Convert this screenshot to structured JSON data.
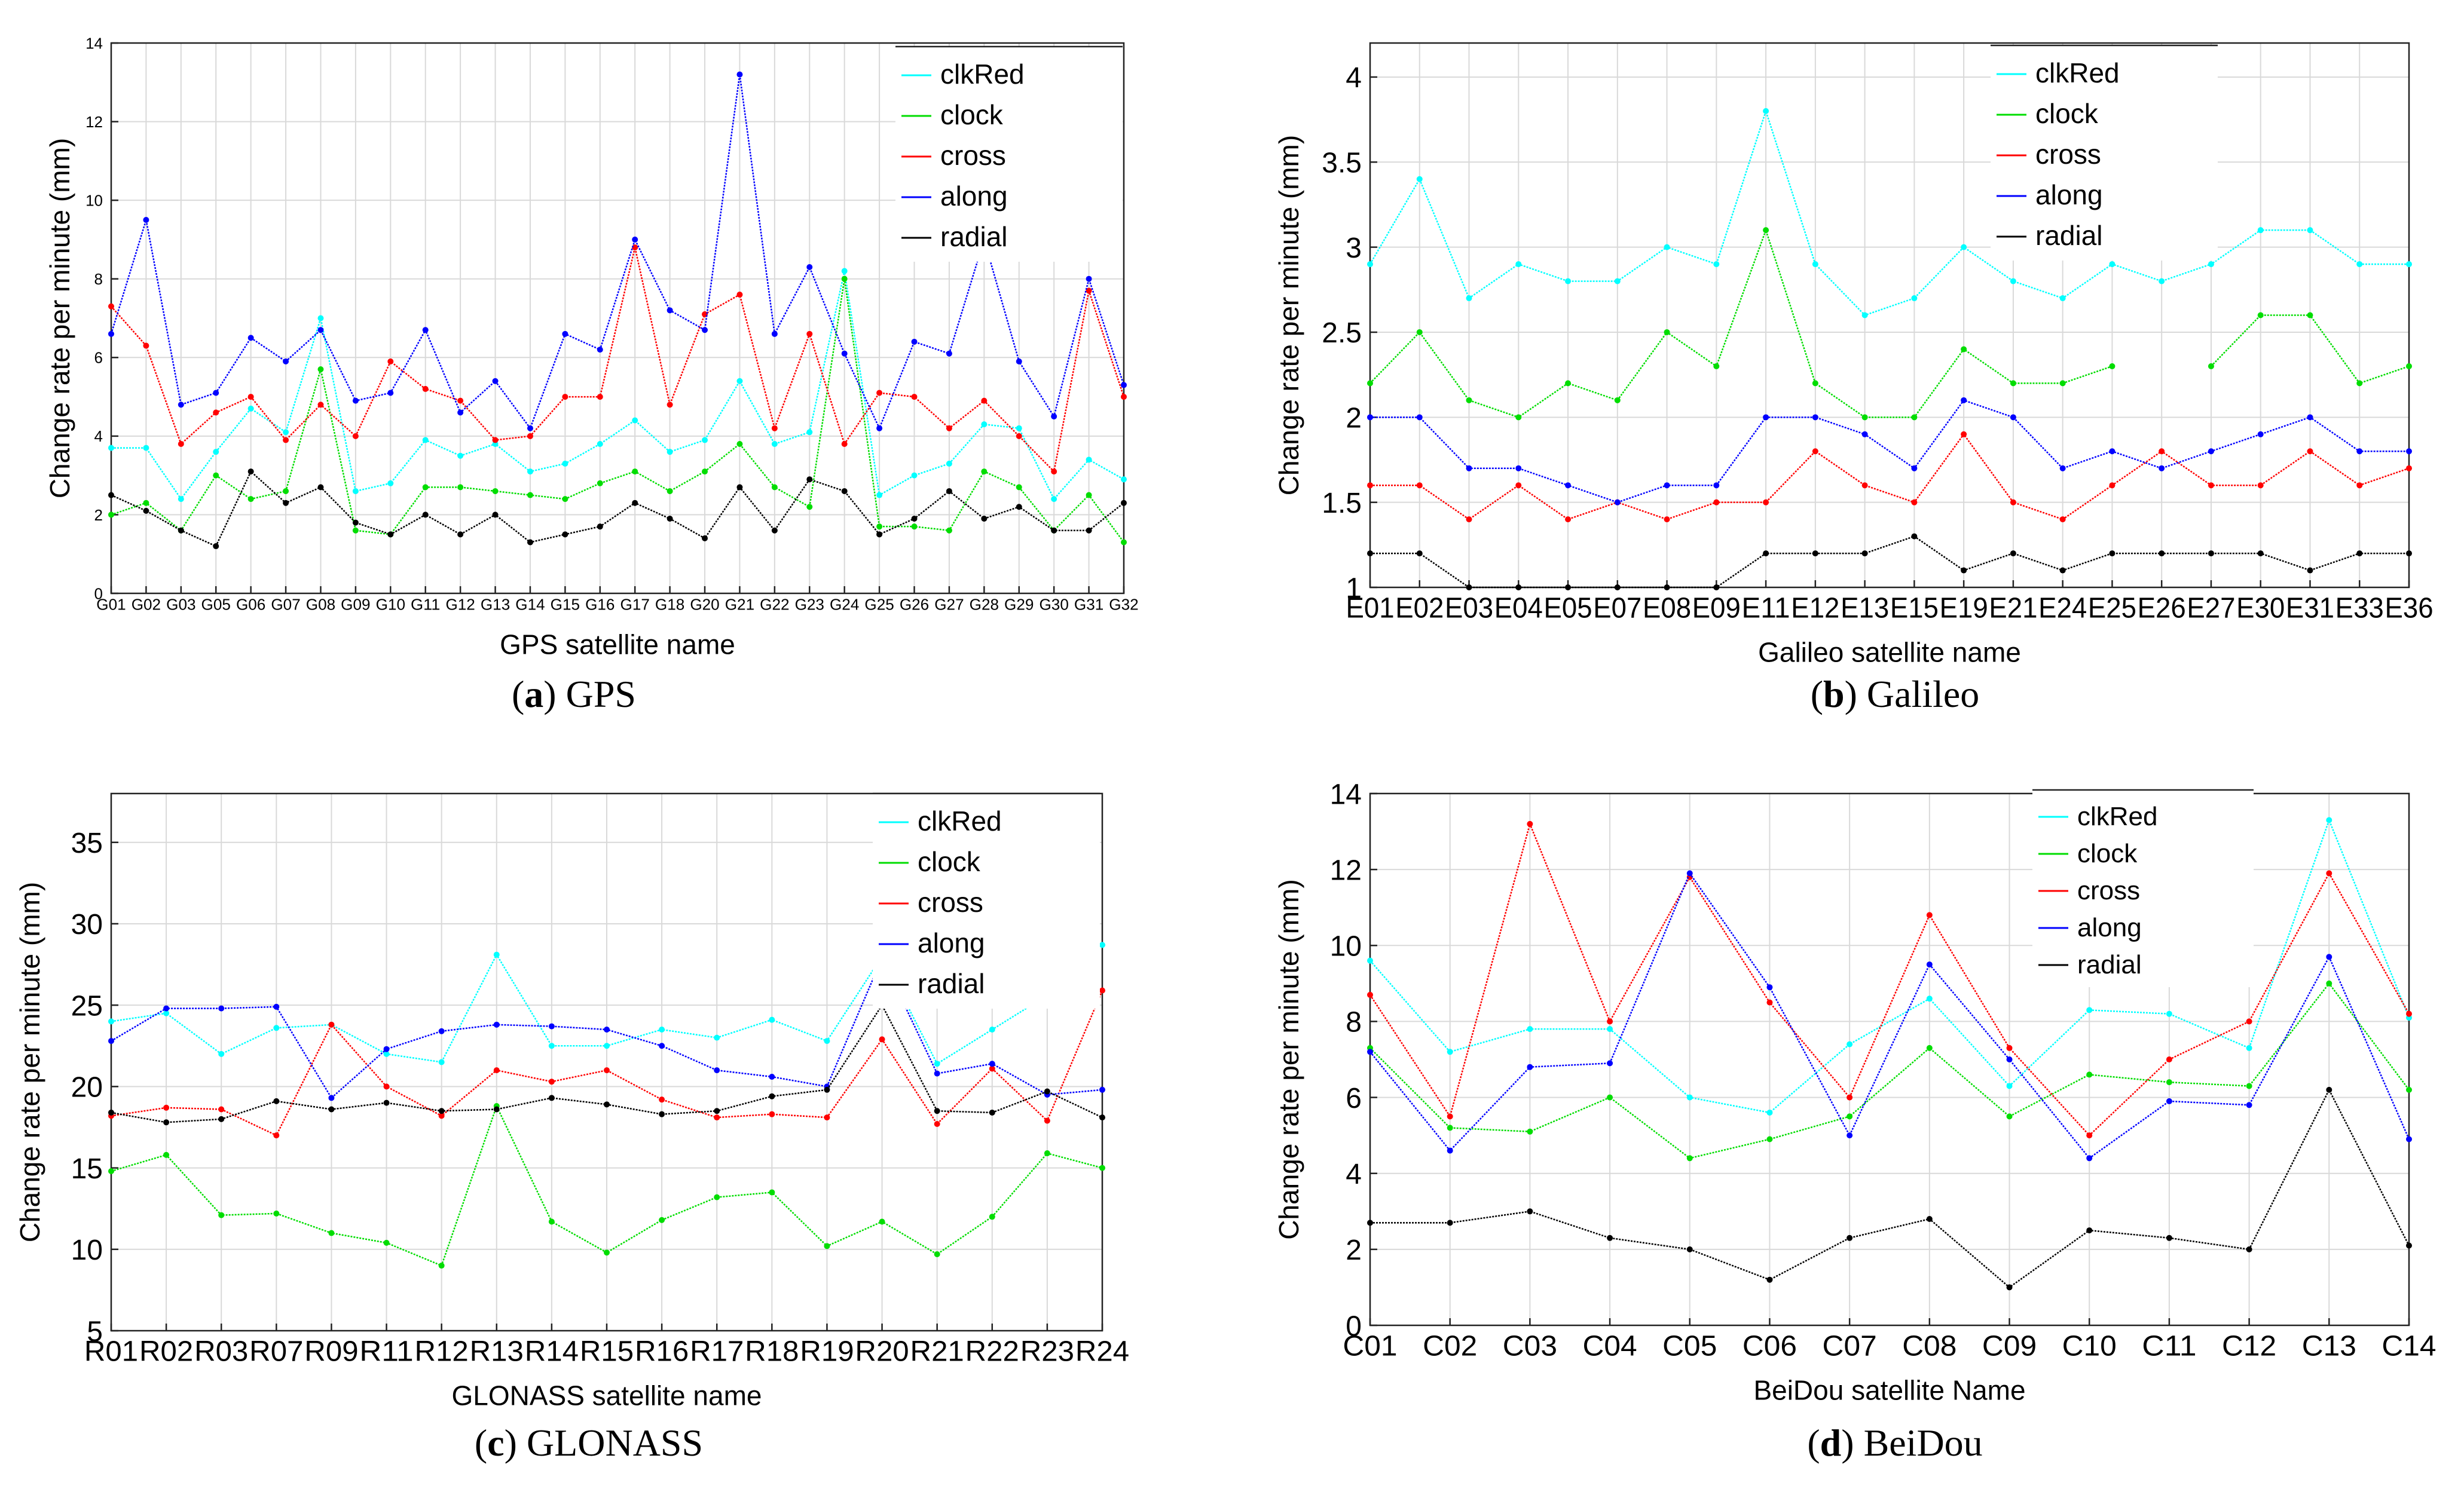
{
  "colors": {
    "clkRed": "#00FFFF",
    "clock": "#00DD00",
    "cross": "#FF0000",
    "along": "#0000FF",
    "radial": "#000000"
  },
  "chart_data": [
    {
      "type": "line",
      "caption_letter": "a",
      "caption_text": " GPS",
      "xlabel": "GPS satellite name",
      "ylabel": "Change rate per minute (mm)",
      "ylim": [
        0,
        14
      ],
      "yticks": [
        0,
        2,
        4,
        6,
        8,
        10,
        12,
        14
      ],
      "grid": true,
      "legend": "top-right",
      "categories": [
        "G01",
        "G02",
        "G03",
        "G05",
        "G06",
        "G07",
        "G08",
        "G09",
        "G10",
        "G11",
        "G12",
        "G13",
        "G14",
        "G15",
        "G16",
        "G17",
        "G18",
        "G20",
        "G21",
        "G22",
        "G23",
        "G24",
        "G25",
        "G26",
        "G27",
        "G28",
        "G29",
        "G30",
        "G31",
        "G32"
      ],
      "series": [
        {
          "name": "clkRed",
          "values": [
            3.7,
            3.7,
            2.4,
            3.6,
            4.7,
            4.1,
            7.0,
            2.6,
            2.8,
            3.9,
            3.5,
            3.8,
            3.1,
            3.3,
            3.8,
            4.4,
            3.6,
            3.9,
            5.4,
            3.8,
            4.1,
            8.2,
            2.5,
            3.0,
            3.3,
            4.3,
            4.2,
            2.4,
            3.4,
            2.9
          ]
        },
        {
          "name": "clock",
          "values": [
            2.0,
            2.3,
            1.6,
            3.0,
            2.4,
            2.6,
            5.7,
            1.6,
            1.5,
            2.7,
            2.7,
            2.6,
            2.5,
            2.4,
            2.8,
            3.1,
            2.6,
            3.1,
            3.8,
            2.7,
            2.2,
            8.0,
            1.7,
            1.7,
            1.6,
            3.1,
            2.7,
            1.6,
            2.5,
            1.3
          ]
        },
        {
          "name": "cross",
          "values": [
            7.3,
            6.3,
            3.8,
            4.6,
            5.0,
            3.9,
            4.8,
            4.0,
            5.9,
            5.2,
            4.9,
            3.9,
            4.0,
            5.0,
            5.0,
            8.8,
            4.8,
            7.1,
            7.6,
            4.2,
            6.6,
            3.8,
            5.1,
            5.0,
            4.2,
            4.9,
            4.0,
            3.1,
            7.7,
            5.0
          ]
        },
        {
          "name": "along",
          "values": [
            6.6,
            9.5,
            4.8,
            5.1,
            6.5,
            5.9,
            6.7,
            4.9,
            5.1,
            6.7,
            4.6,
            5.4,
            4.2,
            6.6,
            6.2,
            9.0,
            7.2,
            6.7,
            13.2,
            6.6,
            8.3,
            6.1,
            4.2,
            6.4,
            6.1,
            9.0,
            5.9,
            4.5,
            8.0,
            5.3
          ]
        },
        {
          "name": "radial",
          "values": [
            2.5,
            2.1,
            1.6,
            1.2,
            3.1,
            2.3,
            2.7,
            1.8,
            1.5,
            2.0,
            1.5,
            2.0,
            1.3,
            1.5,
            1.7,
            2.3,
            1.9,
            1.4,
            2.7,
            1.6,
            2.9,
            2.6,
            1.5,
            1.9,
            2.6,
            1.9,
            2.2,
            1.6,
            1.6,
            2.3
          ]
        }
      ]
    },
    {
      "type": "line",
      "caption_letter": "b",
      "caption_text": " Galileo",
      "xlabel": "Galileo satellite name",
      "ylabel": "Change rate per minute (mm)",
      "ylim": [
        1,
        4.2
      ],
      "yticks": [
        1,
        1.5,
        2,
        2.5,
        3,
        3.5,
        4
      ],
      "grid": true,
      "legend": "top-right",
      "categories": [
        "E01",
        "E02",
        "E03",
        "E04",
        "E05",
        "E07",
        "E08",
        "E09",
        "E11",
        "E12",
        "E13",
        "E15",
        "E19",
        "E21",
        "E24",
        "E25",
        "E26",
        "E27",
        "E30",
        "E31",
        "E33",
        "E36"
      ],
      "series": [
        {
          "name": "clkRed",
          "values": [
            2.9,
            3.4,
            2.7,
            2.9,
            2.8,
            2.8,
            3.0,
            2.9,
            3.8,
            2.9,
            2.6,
            2.7,
            3.0,
            2.8,
            2.7,
            2.9,
            2.8,
            2.9,
            3.1,
            3.1,
            2.9,
            2.9
          ]
        },
        {
          "name": "clock",
          "values": [
            2.2,
            2.5,
            2.1,
            2.0,
            2.2,
            2.1,
            2.5,
            2.3,
            3.1,
            2.2,
            2.0,
            2.0,
            2.4,
            2.2,
            2.2,
            2.3,
            null,
            2.3,
            2.6,
            2.6,
            2.2,
            2.3
          ]
        },
        {
          "name": "cross",
          "values": [
            1.6,
            1.6,
            1.4,
            1.6,
            1.4,
            1.5,
            1.4,
            1.5,
            1.5,
            1.8,
            1.6,
            1.5,
            1.9,
            1.5,
            1.4,
            1.6,
            1.8,
            1.6,
            1.6,
            1.8,
            1.6,
            1.7
          ]
        },
        {
          "name": "along",
          "values": [
            2.0,
            2.0,
            1.7,
            1.7,
            1.6,
            1.5,
            1.6,
            1.6,
            2.0,
            2.0,
            1.9,
            1.7,
            2.1,
            2.0,
            1.7,
            1.8,
            1.7,
            1.8,
            1.9,
            2.0,
            1.8,
            1.8
          ]
        },
        {
          "name": "radial",
          "values": [
            1.2,
            1.2,
            1.0,
            1.0,
            1.0,
            1.0,
            1.0,
            1.0,
            1.2,
            1.2,
            1.2,
            1.3,
            1.1,
            1.2,
            1.1,
            1.2,
            1.2,
            1.2,
            1.2,
            1.1,
            1.2,
            1.2
          ]
        }
      ]
    },
    {
      "type": "line",
      "caption_letter": "c",
      "caption_text": " GLONASS",
      "xlabel": "GLONASS satellite name",
      "ylabel": "Change rate per minute (mm)",
      "ylim": [
        5,
        38
      ],
      "yticks": [
        5,
        10,
        15,
        20,
        25,
        30,
        35
      ],
      "grid": true,
      "legend": "top-right",
      "categories": [
        "R01",
        "R02",
        "R03",
        "R07",
        "R09",
        "R11",
        "R12",
        "R13",
        "R14",
        "R15",
        "R16",
        "R17",
        "R18",
        "R19",
        "R20",
        "R21",
        "R22",
        "R23",
        "R24"
      ],
      "series": [
        {
          "name": "clkRed",
          "values": [
            24.0,
            24.5,
            22.0,
            23.6,
            23.8,
            22.0,
            21.5,
            28.1,
            22.5,
            22.5,
            23.5,
            23.0,
            24.1,
            22.8,
            28.0,
            21.4,
            23.5,
            25.6,
            28.7
          ]
        },
        {
          "name": "clock",
          "values": [
            14.8,
            15.8,
            12.1,
            12.2,
            11.0,
            10.4,
            9.0,
            18.8,
            11.7,
            9.8,
            11.8,
            13.2,
            13.5,
            10.2,
            11.7,
            9.7,
            12.0,
            15.9,
            15.0
          ]
        },
        {
          "name": "cross",
          "values": [
            18.2,
            18.7,
            18.6,
            17.0,
            23.8,
            20.0,
            18.2,
            21.0,
            20.3,
            21.0,
            19.2,
            18.1,
            18.3,
            18.1,
            22.9,
            17.7,
            21.1,
            17.9,
            25.9
          ]
        },
        {
          "name": "along",
          "values": [
            22.8,
            24.8,
            24.8,
            24.9,
            19.3,
            22.3,
            23.4,
            23.8,
            23.7,
            23.5,
            22.5,
            21.0,
            20.6,
            20.0,
            27.9,
            20.8,
            21.4,
            19.5,
            19.8
          ]
        },
        {
          "name": "radial",
          "values": [
            18.4,
            17.8,
            18.0,
            19.1,
            18.6,
            19.0,
            18.5,
            18.6,
            19.3,
            18.9,
            18.3,
            18.5,
            19.4,
            19.8,
            25.0,
            18.5,
            18.4,
            19.7,
            18.1
          ]
        }
      ]
    },
    {
      "type": "line",
      "caption_letter": "d",
      "caption_text": " BeiDou",
      "xlabel": "BeiDou satellite Name",
      "ylabel": "Change rate per minute (mm)",
      "ylim": [
        0,
        14
      ],
      "yticks": [
        0,
        2,
        4,
        6,
        8,
        10,
        12,
        14
      ],
      "grid": true,
      "legend": "top-right",
      "categories": [
        "C01",
        "C02",
        "C03",
        "C04",
        "C05",
        "C06",
        "C07",
        "C08",
        "C09",
        "C10",
        "C11",
        "C12",
        "C13",
        "C14"
      ],
      "series": [
        {
          "name": "clkRed",
          "values": [
            9.6,
            7.2,
            7.8,
            7.8,
            6.0,
            5.6,
            7.4,
            8.6,
            6.3,
            8.3,
            8.2,
            7.3,
            13.3,
            8.1
          ]
        },
        {
          "name": "clock",
          "values": [
            7.3,
            5.2,
            5.1,
            6.0,
            4.4,
            4.9,
            5.5,
            7.3,
            5.5,
            6.6,
            6.4,
            6.3,
            9.0,
            6.2
          ]
        },
        {
          "name": "cross",
          "values": [
            8.7,
            5.5,
            13.2,
            8.0,
            11.8,
            8.5,
            6.0,
            10.8,
            7.3,
            5.0,
            7.0,
            8.0,
            11.9,
            8.2
          ]
        },
        {
          "name": "along",
          "values": [
            7.2,
            4.6,
            6.8,
            6.9,
            11.9,
            8.9,
            5.0,
            9.5,
            7.0,
            4.4,
            5.9,
            5.8,
            9.7,
            4.9
          ]
        },
        {
          "name": "radial",
          "values": [
            2.7,
            2.7,
            3.0,
            2.3,
            2.0,
            1.2,
            2.3,
            2.8,
            1.0,
            2.5,
            2.3,
            2.0,
            6.2,
            2.1
          ]
        }
      ]
    }
  ]
}
